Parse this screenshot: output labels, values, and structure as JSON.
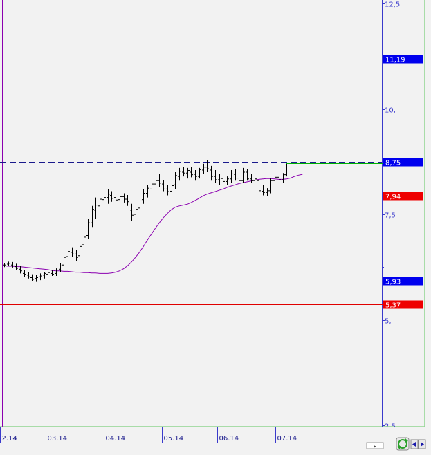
{
  "chart_data": {
    "type": "ohlc",
    "title": "",
    "xlabel": "",
    "ylabel": "",
    "ylim": [
      2.5,
      12.5
    ],
    "x_tick_labels": [
      "2.14",
      "03.14",
      "04.14",
      "05.14",
      "06.14",
      "07.14"
    ],
    "y_tick_labels": [
      {
        "value": 12.5,
        "label": "12,5"
      },
      {
        "value": 10,
        "label": "10,"
      },
      {
        "value": 7.5,
        "label": "7,5"
      },
      {
        "value": 5,
        "label": "5,"
      },
      {
        "value": 2.5,
        "label": "2,5"
      }
    ],
    "y_minor_ticks": [
      11.25,
      8.75,
      6.25,
      3.75
    ],
    "horizontal_levels": [
      {
        "value": 11.19,
        "label": "11,19",
        "style": "dashed",
        "color": "#1a1a8c",
        "label_bg": "#0000ee"
      },
      {
        "value": 8.75,
        "label": "8,75",
        "style": "dashed",
        "color": "#1a1a8c",
        "label_bg": "#0000ee"
      },
      {
        "value": 7.94,
        "label": "7,94",
        "style": "solid",
        "color": "#e00000",
        "label_bg": "#ee0000"
      },
      {
        "value": 5.93,
        "label": "5,93",
        "style": "dashed",
        "color": "#1a1a8c",
        "label_bg": "#0000ee"
      },
      {
        "value": 5.37,
        "label": "5,37",
        "style": "solid",
        "color": "#e00000",
        "label_bg": "#ee0000"
      }
    ],
    "series": [
      {
        "type": "moving_average",
        "color": "#8b00b0",
        "values": [
          6.28,
          6.27,
          6.27,
          6.26,
          6.26,
          6.25,
          6.24,
          6.23,
          6.22,
          6.21,
          6.2,
          6.19,
          6.17,
          6.16,
          6.16,
          6.15,
          6.15,
          6.14,
          6.13,
          6.13,
          6.12,
          6.12,
          6.11,
          6.11,
          6.1,
          6.1,
          6.1,
          6.11,
          6.13,
          6.16,
          6.21,
          6.28,
          6.37,
          6.48,
          6.6,
          6.74,
          6.89,
          7.03,
          7.17,
          7.3,
          7.42,
          7.52,
          7.61,
          7.67,
          7.7,
          7.72,
          7.74,
          7.78,
          7.83,
          7.88,
          7.94,
          7.98,
          8.01,
          8.04,
          8.07,
          8.1,
          8.14,
          8.17,
          8.2,
          8.23,
          8.25,
          8.27,
          8.29,
          8.31,
          8.33,
          8.34,
          8.35,
          8.35,
          8.34,
          8.33,
          8.33,
          8.34,
          8.36,
          8.4,
          8.43,
          8.45
        ]
      },
      {
        "type": "ohlc",
        "color": "#000000",
        "bars": [
          [
            6.3,
            6.35,
            6.25,
            6.3
          ],
          [
            6.32,
            6.38,
            6.27,
            6.34
          ],
          [
            6.3,
            6.37,
            6.24,
            6.28
          ],
          [
            6.26,
            6.33,
            6.18,
            6.22
          ],
          [
            6.2,
            6.28,
            6.1,
            6.16
          ],
          [
            6.1,
            6.18,
            6.02,
            6.08
          ],
          [
            6.06,
            6.14,
            5.98,
            6.02
          ],
          [
            6.0,
            6.08,
            5.92,
            5.96
          ],
          [
            5.98,
            6.06,
            5.9,
            6.0
          ],
          [
            6.02,
            6.1,
            5.94,
            6.04
          ],
          [
            6.06,
            6.14,
            5.98,
            6.1
          ],
          [
            6.08,
            6.16,
            6.02,
            6.12
          ],
          [
            6.1,
            6.18,
            6.04,
            6.08
          ],
          [
            6.1,
            6.22,
            6.04,
            6.18
          ],
          [
            6.2,
            6.35,
            6.14,
            6.28
          ],
          [
            6.3,
            6.55,
            6.24,
            6.48
          ],
          [
            6.5,
            6.7,
            6.42,
            6.62
          ],
          [
            6.6,
            6.72,
            6.5,
            6.56
          ],
          [
            6.56,
            6.66,
            6.4,
            6.48
          ],
          [
            6.52,
            6.8,
            6.46,
            6.74
          ],
          [
            6.78,
            7.05,
            6.7,
            6.96
          ],
          [
            7.0,
            7.4,
            6.92,
            7.3
          ],
          [
            7.3,
            7.7,
            7.2,
            7.62
          ],
          [
            7.6,
            7.9,
            7.4,
            7.72
          ],
          [
            7.7,
            7.95,
            7.5,
            7.86
          ],
          [
            7.85,
            8.05,
            7.7,
            7.9
          ],
          [
            7.9,
            8.1,
            7.75,
            7.98
          ],
          [
            7.95,
            8.05,
            7.8,
            7.88
          ],
          [
            7.9,
            8.0,
            7.75,
            7.84
          ],
          [
            7.85,
            7.98,
            7.72,
            7.92
          ],
          [
            7.92,
            8.0,
            7.78,
            7.86
          ],
          [
            7.86,
            7.96,
            7.7,
            7.8
          ],
          [
            7.6,
            7.75,
            7.35,
            7.48
          ],
          [
            7.5,
            7.7,
            7.4,
            7.62
          ],
          [
            7.65,
            7.9,
            7.55,
            7.82
          ],
          [
            7.85,
            8.1,
            7.75,
            8.0
          ],
          [
            8.0,
            8.2,
            7.9,
            8.12
          ],
          [
            8.1,
            8.3,
            8.0,
            8.22
          ],
          [
            8.22,
            8.4,
            8.1,
            8.3
          ],
          [
            8.3,
            8.45,
            8.15,
            8.24
          ],
          [
            8.22,
            8.32,
            8.05,
            8.1
          ],
          [
            8.1,
            8.2,
            7.95,
            8.04
          ],
          [
            8.05,
            8.25,
            8.0,
            8.18
          ],
          [
            8.2,
            8.5,
            8.1,
            8.42
          ],
          [
            8.4,
            8.6,
            8.3,
            8.52
          ],
          [
            8.5,
            8.62,
            8.4,
            8.48
          ],
          [
            8.48,
            8.6,
            8.35,
            8.54
          ],
          [
            8.5,
            8.62,
            8.38,
            8.44
          ],
          [
            8.45,
            8.55,
            8.3,
            8.4
          ],
          [
            8.4,
            8.6,
            8.35,
            8.56
          ],
          [
            8.55,
            8.7,
            8.45,
            8.62
          ],
          [
            8.62,
            8.78,
            8.5,
            8.58
          ],
          [
            8.55,
            8.65,
            8.3,
            8.4
          ],
          [
            8.4,
            8.55,
            8.25,
            8.32
          ],
          [
            8.32,
            8.45,
            8.2,
            8.36
          ],
          [
            8.35,
            8.45,
            8.22,
            8.28
          ],
          [
            8.28,
            8.4,
            8.2,
            8.34
          ],
          [
            8.34,
            8.55,
            8.25,
            8.46
          ],
          [
            8.45,
            8.58,
            8.3,
            8.36
          ],
          [
            8.36,
            8.48,
            8.22,
            8.3
          ],
          [
            8.3,
            8.6,
            8.25,
            8.5
          ],
          [
            8.5,
            8.58,
            8.3,
            8.34
          ],
          [
            8.34,
            8.45,
            8.25,
            8.3
          ],
          [
            8.3,
            8.42,
            8.2,
            8.34
          ],
          [
            8.3,
            8.4,
            8.0,
            8.06
          ],
          [
            8.05,
            8.2,
            7.95,
            8.02
          ],
          [
            8.02,
            8.12,
            7.94,
            8.06
          ],
          [
            8.06,
            8.35,
            8.0,
            8.3
          ],
          [
            8.3,
            8.45,
            8.22,
            8.38
          ],
          [
            8.38,
            8.45,
            8.2,
            8.32
          ],
          [
            8.32,
            8.48,
            8.25,
            8.44
          ],
          [
            8.44,
            8.72,
            8.4,
            8.72
          ]
        ]
      },
      {
        "type": "projection",
        "color": "#00b400",
        "values": [
          8.72,
          8.72
        ]
      }
    ]
  },
  "footer": {
    "refresh_icon": "refresh-icon",
    "scroll_left_icon": "arrow-left-icon",
    "scroll_right_icon": "arrow-right-icon"
  }
}
